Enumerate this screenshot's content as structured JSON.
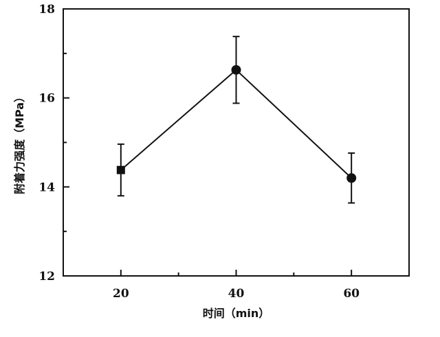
{
  "chart_data": {
    "type": "line",
    "title": "",
    "xlabel": "时间（min）",
    "ylabel": "附着力强度（MPa）",
    "x": [
      20,
      40,
      60
    ],
    "xlim": [
      10,
      70
    ],
    "ylim": [
      12,
      18
    ],
    "xticks": [
      20,
      40,
      60
    ],
    "xtick_labels": [
      "20",
      "40",
      "60"
    ],
    "yticks": [
      12,
      14,
      16,
      18
    ],
    "ytick_labels": [
      "12",
      "14",
      "16",
      "18"
    ],
    "grid": false,
    "legend": "none",
    "series": [
      {
        "values": [
          14.38,
          16.63,
          14.2
        ],
        "error": [
          0.58,
          0.75,
          0.56
        ],
        "markers": [
          "square",
          "circle",
          "circle"
        ],
        "color": "#111111"
      }
    ]
  }
}
